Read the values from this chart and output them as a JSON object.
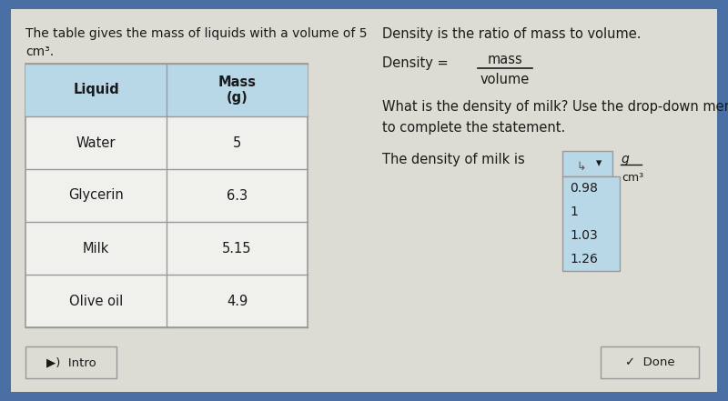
{
  "outer_bg": "#4a6fa5",
  "content_bg": "#dcdcd4",
  "header_bg": "#b8d8e8",
  "table_border": "#999999",
  "table_cell_bg": "#f0f0ec",
  "text_color": "#1a1a1a",
  "header_text_color": "#1a1a1a",
  "intro_line1": "The table gives the mass of liquids with a volume of 5",
  "intro_line2": "cm³.",
  "density_title": "Density is the ratio of mass to volume.",
  "density_eq": "Density =",
  "density_num": "mass",
  "density_den": "volume",
  "question_text": "What is the density of milk? Use the drop-down menu\nto complete the statement.",
  "statement_text": "The density of milk is",
  "unit_g": "g",
  "unit_cm3": "cm³",
  "dropdown_options": [
    "0.98",
    "1",
    "1.03",
    "1.26"
  ],
  "liquids": [
    "Water",
    "Glycerin",
    "Milk",
    "Olive oil"
  ],
  "masses": [
    "5",
    "6.3",
    "5.15",
    "4.9"
  ],
  "col1_header": "Liquid",
  "col2_header": "Mass\n(g)",
  "intro_btn_text": "▶)  Intro",
  "done_btn_text": "✓  Done"
}
